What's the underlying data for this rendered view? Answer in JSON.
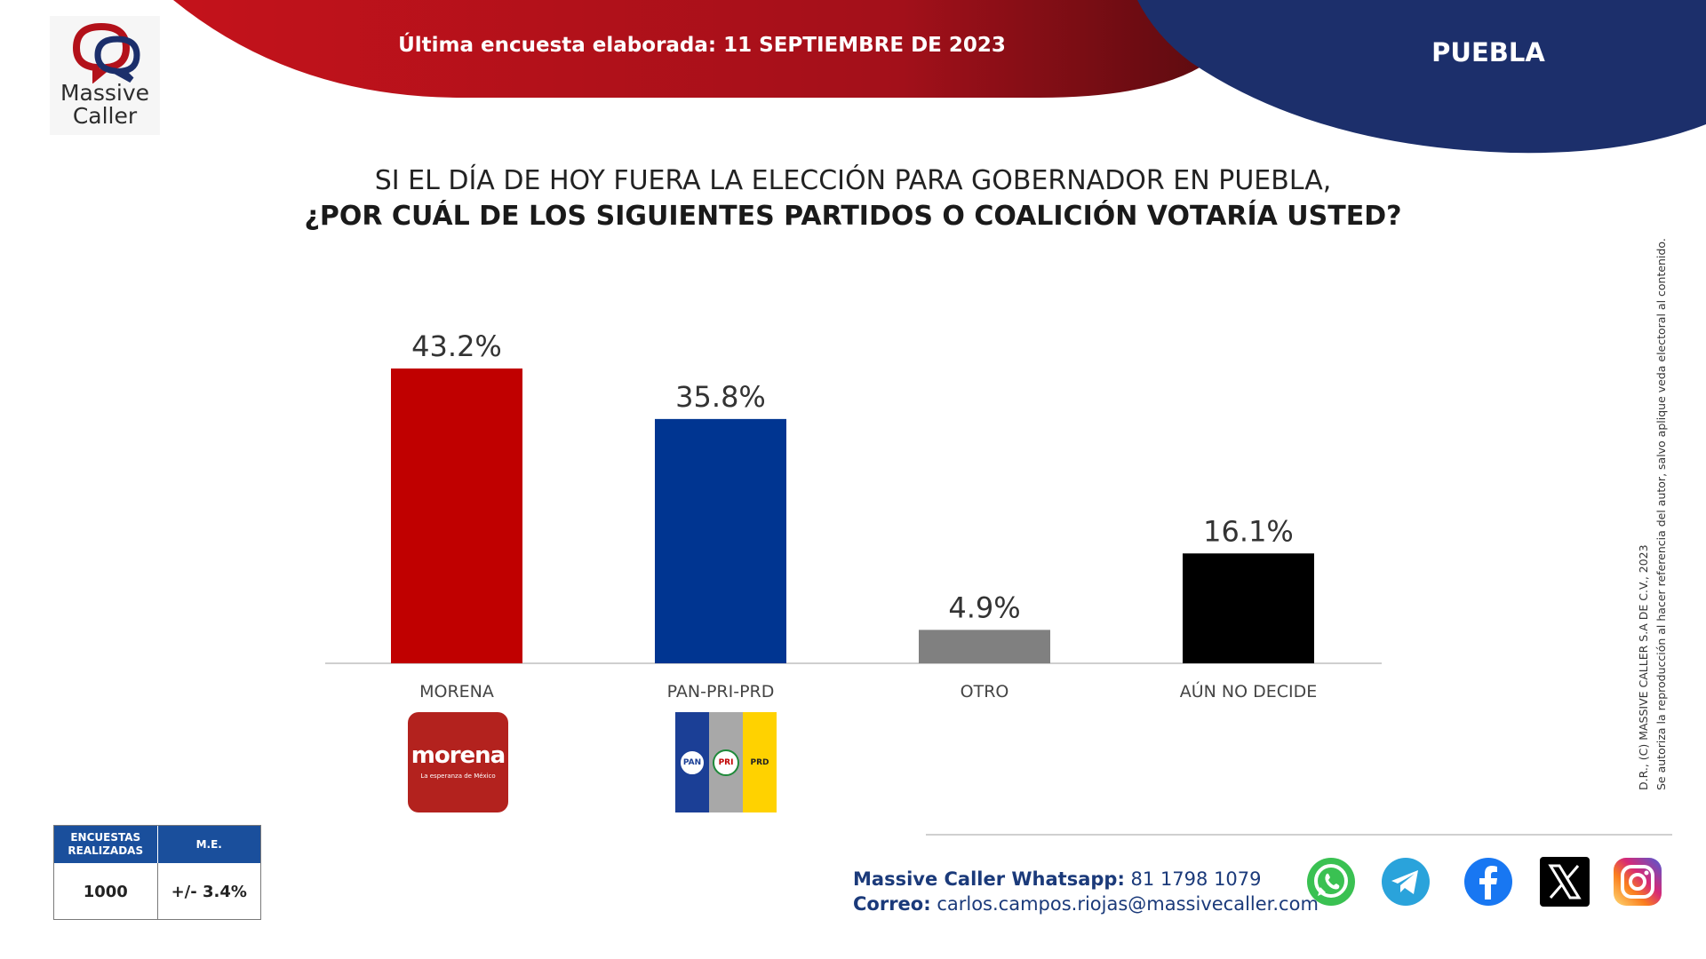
{
  "brand": {
    "name_line1": "Massive",
    "name_line2": "Caller"
  },
  "header": {
    "date_text": "Última encuesta elaborada: 11 SEPTIEMBRE  DE 2023",
    "state": "PUEBLA"
  },
  "question": {
    "line1": "SI EL DÍA DE HOY FUERA LA ELECCIÓN PARA GOBERNADOR EN PUEBLA,",
    "line2": "¿POR CUÁL DE LOS SIGUIENTES PARTIDOS O COALICIÓN VOTARÍA USTED?"
  },
  "chart_data": {
    "type": "bar",
    "categories": [
      "MORENA",
      "PAN-PRI-PRD",
      "OTRO",
      "AÚN NO DECIDE"
    ],
    "values": [
      43.2,
      35.8,
      4.9,
      16.1
    ],
    "value_labels": [
      "43.2%",
      "35.8%",
      "4.9%",
      "16.1%"
    ],
    "colors": [
      "#c00000",
      "#003591",
      "#808080",
      "#000000"
    ],
    "ylim": [
      0,
      50
    ],
    "grid": false,
    "legend": "none"
  },
  "party_logos": {
    "morena": {
      "word": "morena",
      "tagline": "La esperanza de México"
    },
    "coalicion": {
      "pan": "PAN",
      "pri": "PRI",
      "prd": "PRD"
    }
  },
  "legal": {
    "line1": "D.R., (C) MASSIVE CALLER S.A DE C.V., 2023",
    "line2": "Se autoriza la reproducción al hacer referencia del autor, salvo aplique veda electoral al contenido."
  },
  "stats": {
    "header_surveys": "ENCUESTAS REALIZADAS",
    "header_me": "M.E.",
    "surveys": "1000",
    "me": "+/- 3.4%"
  },
  "contact": {
    "whatsapp_label": "Massive Caller Whatsapp:",
    "whatsapp_number": "81 1798 1079",
    "email_label": "Correo:",
    "email": "carlos.campos.riojas@massivecaller.com"
  },
  "colors": {
    "red": "#b3111a",
    "navy": "#1c2f6b",
    "whatsapp": "#3ac152",
    "telegram": "#2aa3db",
    "facebook": "#1877f2"
  },
  "social_icons": [
    "whatsapp-icon",
    "telegram-icon",
    "facebook-icon",
    "x-icon",
    "instagram-icon"
  ]
}
